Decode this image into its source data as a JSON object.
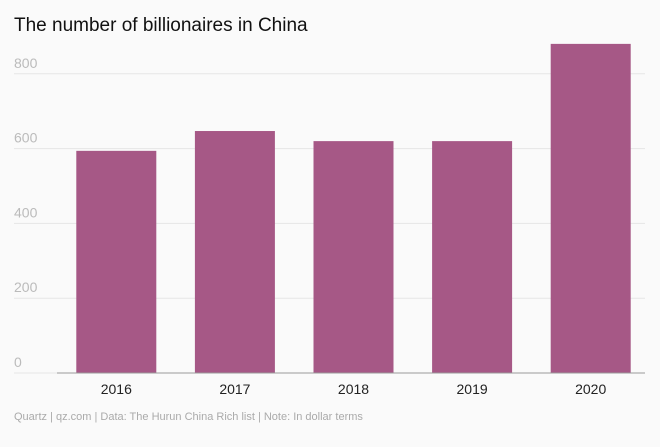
{
  "chart_data": {
    "type": "bar",
    "title": "The number of billionaires in China",
    "categories": [
      "2016",
      "2017",
      "2018",
      "2019",
      "2020"
    ],
    "values": [
      594,
      647,
      620,
      620,
      880
    ],
    "color": "#a65886",
    "ylim": [
      0,
      900
    ],
    "yticks": [
      0,
      200,
      400,
      600,
      800
    ],
    "grid": true,
    "footer": "Quartz | qz.com | Data: The Hurun China Rich list | Note: In dollar terms"
  }
}
